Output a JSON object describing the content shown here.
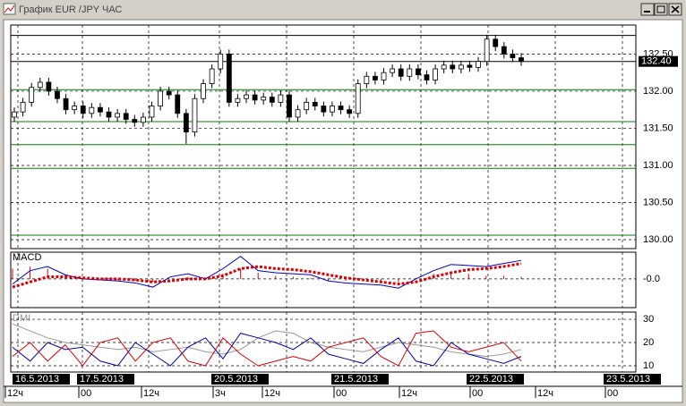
{
  "window_title": "График EUR /JPY ЧАС",
  "chart_data": [
    {
      "type": "candlestick",
      "ylim": [
        129.88,
        132.89
      ],
      "yticks": [
        {
          "value": 130,
          "label": "130.00"
        },
        {
          "value": 130.5,
          "label": "130.50"
        },
        {
          "value": 131,
          "label": "131.00"
        },
        {
          "value": 131.5,
          "label": "131.50"
        },
        {
          "value": 132,
          "label": "132.00"
        },
        {
          "value": 132.5,
          "label": "132.50"
        }
      ],
      "last_price": {
        "value": 132.4,
        "label": "132.40"
      },
      "levels": [
        {
          "value": 132.75,
          "color": "#000000"
        },
        {
          "value": 132.4,
          "color": "#000000"
        },
        {
          "value": 132.02,
          "color": "#008000"
        },
        {
          "value": 131.59,
          "color": "#008000"
        },
        {
          "value": 131.28,
          "color": "#008000"
        },
        {
          "value": 130.96,
          "color": "#008000"
        },
        {
          "value": 130.06,
          "color": "#008000"
        }
      ],
      "open": [
        131.65,
        131.72,
        131.85,
        132.05,
        132.12,
        132.0,
        131.9,
        131.75,
        131.8,
        131.7,
        131.78,
        131.72,
        131.65,
        131.7,
        131.62,
        131.58,
        131.65,
        131.8,
        132.0,
        131.95,
        131.7,
        131.45,
        131.9,
        132.1,
        132.3,
        132.5,
        131.85,
        131.9,
        131.95,
        131.88,
        131.92,
        131.85,
        131.95,
        131.65,
        131.75,
        131.85,
        131.8,
        131.72,
        131.8,
        131.75,
        131.7,
        132.1,
        132.2,
        132.15,
        132.25,
        132.3,
        132.2,
        132.3,
        132.22,
        132.15,
        132.3,
        132.35,
        132.3,
        132.35,
        132.32,
        132.4,
        132.7,
        132.6,
        132.5,
        132.45
      ],
      "high": [
        131.78,
        131.91,
        132.11,
        132.18,
        132.18,
        132.06,
        131.96,
        131.86,
        131.86,
        131.84,
        131.84,
        131.78,
        131.76,
        131.76,
        131.68,
        131.71,
        131.86,
        132.06,
        132.06,
        132.01,
        131.76,
        131.96,
        132.16,
        132.36,
        132.56,
        132.56,
        131.96,
        132.01,
        132.01,
        131.98,
        131.98,
        132.01,
        132.01,
        131.81,
        131.91,
        131.91,
        131.86,
        131.86,
        131.86,
        131.81,
        132.16,
        132.26,
        132.26,
        132.31,
        132.36,
        132.36,
        132.36,
        132.36,
        132.28,
        132.36,
        132.41,
        132.41,
        132.41,
        132.41,
        132.46,
        132.76,
        132.76,
        132.66,
        132.56,
        132.51
      ],
      "low": [
        131.59,
        131.66,
        131.79,
        131.99,
        131.94,
        131.84,
        131.69,
        131.69,
        131.64,
        131.64,
        131.66,
        131.59,
        131.59,
        131.56,
        131.52,
        131.52,
        131.59,
        131.74,
        131.89,
        131.64,
        131.29,
        131.39,
        131.84,
        132.04,
        132.24,
        131.79,
        131.79,
        131.84,
        131.82,
        131.82,
        131.79,
        131.79,
        131.59,
        131.59,
        131.69,
        131.74,
        131.66,
        131.66,
        131.69,
        131.64,
        131.64,
        132.04,
        132.09,
        132.09,
        132.19,
        132.14,
        132.14,
        132.16,
        132.09,
        132.09,
        132.24,
        132.24,
        132.24,
        132.26,
        132.26,
        132.34,
        132.54,
        132.44,
        132.39,
        132.34
      ],
      "close": [
        131.72,
        131.85,
        132.05,
        132.12,
        132.0,
        131.9,
        131.75,
        131.8,
        131.7,
        131.78,
        131.72,
        131.65,
        131.7,
        131.62,
        131.58,
        131.65,
        131.8,
        132.0,
        131.95,
        131.7,
        131.45,
        131.9,
        132.1,
        132.3,
        132.5,
        131.85,
        131.9,
        131.95,
        131.88,
        131.92,
        131.85,
        131.95,
        131.65,
        131.75,
        131.85,
        131.8,
        131.72,
        131.8,
        131.75,
        131.7,
        132.1,
        132.2,
        132.15,
        132.25,
        132.3,
        132.2,
        132.3,
        132.22,
        132.15,
        132.3,
        132.35,
        132.3,
        132.35,
        132.32,
        132.4,
        132.7,
        132.6,
        132.5,
        132.45,
        132.4
      ]
    },
    {
      "type": "macd",
      "title": "MACD",
      "ylim": [
        -0.28,
        0.26
      ],
      "yticks": [
        {
          "value": 0,
          "label": "-0.0"
        }
      ],
      "histogram": [
        0.1,
        0.12,
        0.1,
        0.04,
        0.01,
        0.0,
        -0.01,
        -0.02,
        -0.03,
        0.0,
        0.02,
        0.0,
        0.05,
        0.1,
        0.06,
        0.03,
        0.02,
        0.01,
        -0.02,
        -0.02,
        -0.02,
        -0.02,
        -0.03,
        0.01,
        0.05,
        0.06,
        0.05,
        0.03,
        0.03,
        0.02
      ],
      "series": [
        {
          "color": "#0000cc",
          "values": [
            -0.05,
            0.08,
            0.12,
            0.04,
            0.0,
            -0.01,
            -0.02,
            -0.04,
            -0.08,
            0.02,
            0.05,
            0.0,
            0.1,
            0.22,
            0.08,
            0.06,
            0.05,
            0.04,
            -0.02,
            -0.04,
            -0.05,
            -0.06,
            -0.09,
            0.0,
            0.08,
            0.14,
            0.13,
            0.12,
            0.15,
            0.18
          ]
        },
        {
          "color": "#dd0000",
          "values": [
            -0.08,
            -0.03,
            0.02,
            0.02,
            0.01,
            0.0,
            0.0,
            -0.01,
            -0.03,
            -0.02,
            0.0,
            0.0,
            0.03,
            0.1,
            0.12,
            0.1,
            0.09,
            0.07,
            0.04,
            0.01,
            -0.01,
            -0.03,
            -0.05,
            -0.03,
            0.02,
            0.06,
            0.09,
            0.1,
            0.12,
            0.15
          ]
        }
      ]
    },
    {
      "type": "dmi",
      "title": "DMI",
      "ylim": [
        7.3,
        33.1
      ],
      "yticks": [
        10,
        20,
        30
      ],
      "series": [
        {
          "color": "#999999",
          "values": [
            28,
            25,
            22,
            20,
            19,
            18,
            17,
            18,
            16,
            17,
            18,
            16,
            15,
            17,
            22,
            25,
            24,
            20,
            18,
            17,
            16,
            18,
            20,
            19,
            18,
            16,
            15,
            14,
            15,
            17
          ]
        },
        {
          "color": "#0000aa",
          "values": [
            18,
            12,
            20,
            17,
            18,
            12,
            10,
            20,
            15,
            10,
            18,
            22,
            13,
            24,
            22,
            20,
            17,
            22,
            15,
            13,
            11,
            17,
            22,
            12,
            10,
            20,
            15,
            13,
            11,
            14
          ]
        },
        {
          "color": "#dd0000",
          "values": [
            14,
            20,
            12,
            19,
            10,
            20,
            22,
            12,
            20,
            22,
            12,
            10,
            22,
            15,
            10,
            12,
            14,
            12,
            18,
            20,
            22,
            14,
            10,
            24,
            25,
            18,
            16,
            18,
            20,
            12
          ]
        }
      ]
    }
  ],
  "time_axis": {
    "dates": [
      "16.5.2013",
      "17.5.2013",
      "20.5.2013",
      "21.5.2013",
      "22.5.2013",
      "23.5.2013"
    ],
    "hours": [
      "12ч",
      "00",
      "12ч",
      "3ч",
      "12ч",
      "00",
      "12ч",
      "00",
      "12ч",
      "00"
    ]
  }
}
